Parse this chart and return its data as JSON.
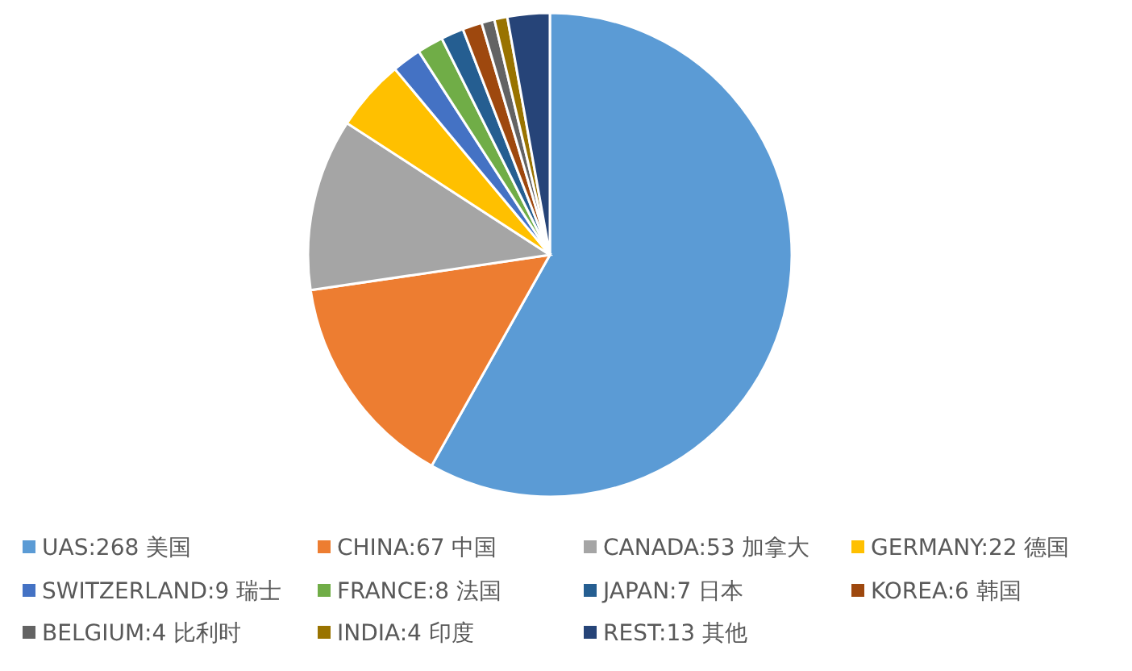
{
  "chart_data": {
    "type": "pie",
    "legend": "bottom",
    "categories": [
      "UAS:268 美国",
      "CHINA:67 中国",
      "CANADA:53 加拿大",
      "GERMANY:22 德国",
      "SWITZERLAND:9 瑞士",
      "FRANCE:8 法国",
      "JAPAN:7 日本",
      "KOREA:6 韩国",
      "BELGIUM:4 比利时",
      "INDIA:4 印度",
      "REST:13 其他"
    ],
    "values": [
      268,
      67,
      53,
      22,
      9,
      8,
      7,
      6,
      4,
      4,
      13
    ],
    "colors": [
      "#5b9bd5",
      "#ed7d31",
      "#a5a5a5",
      "#ffc000",
      "#4472c4",
      "#70ad47",
      "#255e91",
      "#9e480e",
      "#636363",
      "#997300",
      "#264478"
    ]
  }
}
